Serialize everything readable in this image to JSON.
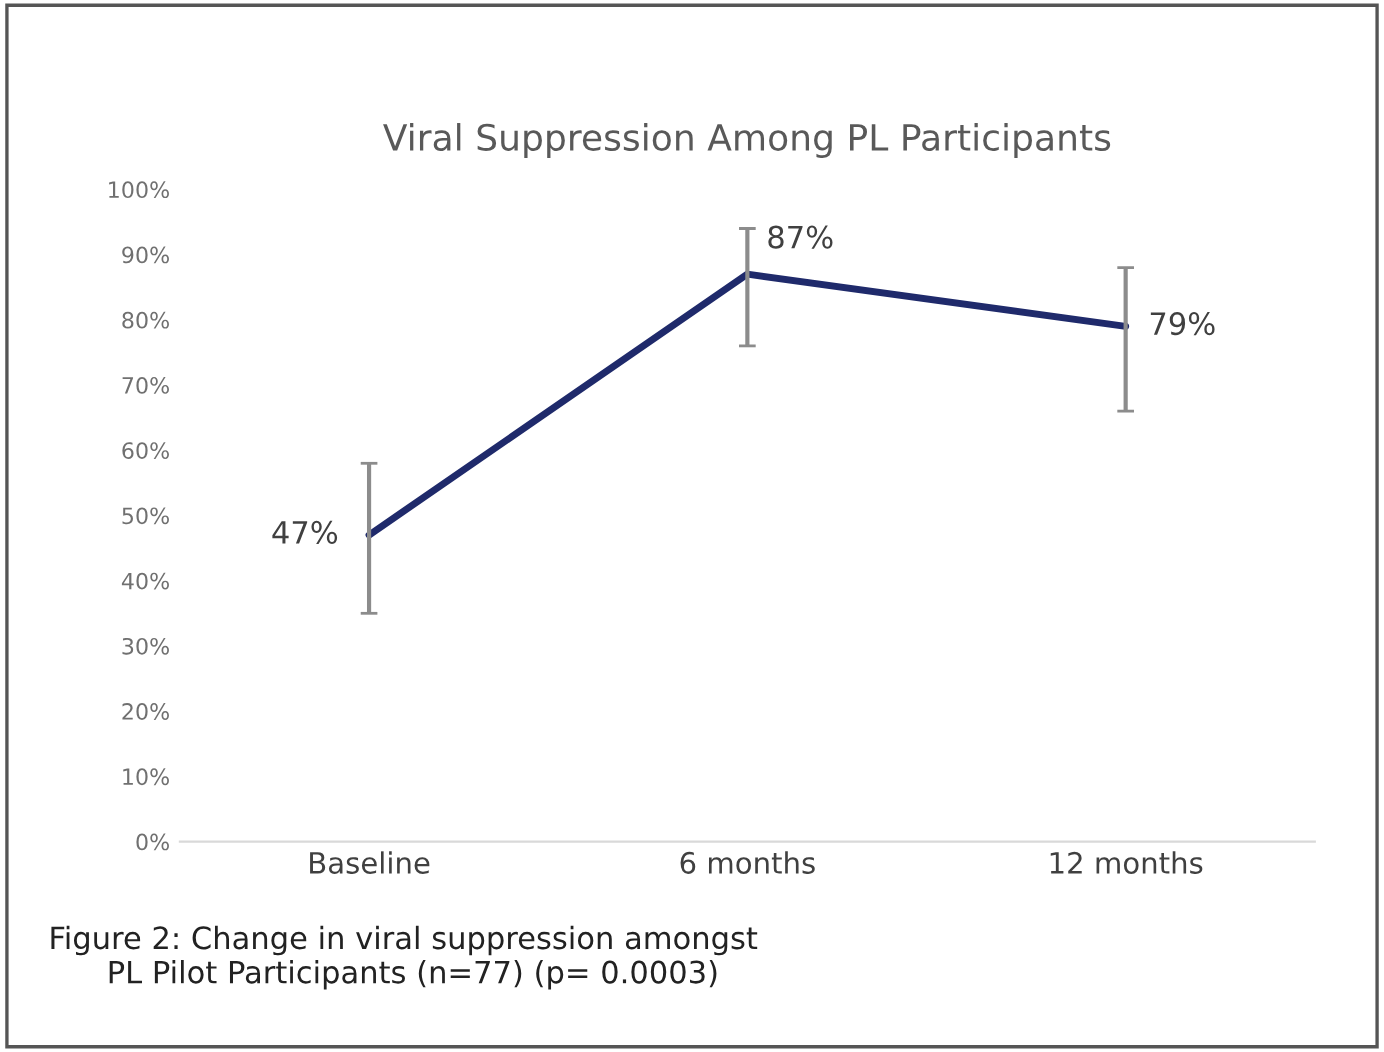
{
  "chart_data": {
    "type": "line",
    "title": "Viral Suppression Among PL Participants",
    "categories": [
      "Baseline",
      "6 months",
      "12 months"
    ],
    "series": [
      {
        "color": "#1f2a6b",
        "values": [
          47,
          87,
          79
        ],
        "errors": [
          [
            35,
            58
          ],
          [
            76,
            94
          ],
          [
            66,
            88
          ]
        ],
        "value_labels": [
          "47%",
          "87%",
          "79%"
        ]
      }
    ],
    "ylim": [
      0,
      100
    ],
    "yticks": [
      {
        "value": 0,
        "label": "0%"
      },
      {
        "value": 10,
        "label": "10%"
      },
      {
        "value": 20,
        "label": "20%"
      },
      {
        "value": 30,
        "label": "30%"
      },
      {
        "value": 40,
        "label": "40%"
      },
      {
        "value": 50,
        "label": "50%"
      },
      {
        "value": 60,
        "label": "60%"
      },
      {
        "value": 70,
        "label": "70%"
      },
      {
        "value": 80,
        "label": "80%"
      },
      {
        "value": 90,
        "label": "90%"
      },
      {
        "value": 100,
        "label": "100%"
      }
    ],
    "grid": false,
    "legend": false,
    "marker": "none",
    "line_style": "solid",
    "annotations": [
      "Figure 2: Change in viral suppression amongst\n      PL Pilot Participants (n=77) (p= 0.0003)"
    ]
  }
}
